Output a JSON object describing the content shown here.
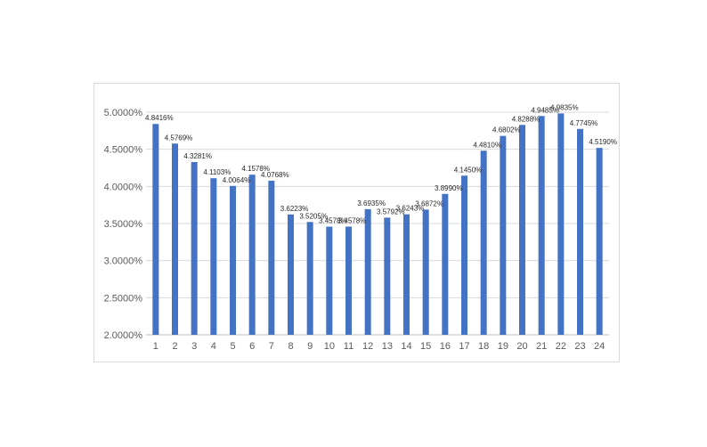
{
  "chart_data": {
    "type": "bar",
    "title": "",
    "xlabel": "",
    "ylabel": "",
    "categories": [
      "1",
      "2",
      "3",
      "4",
      "5",
      "6",
      "7",
      "8",
      "9",
      "10",
      "11",
      "12",
      "13",
      "14",
      "15",
      "16",
      "17",
      "18",
      "19",
      "20",
      "21",
      "22",
      "23",
      "24"
    ],
    "values": [
      4.8416,
      4.5769,
      4.3281,
      4.1103,
      4.0064,
      4.1578,
      4.0768,
      3.6223,
      3.5205,
      3.4578,
      3.4578,
      3.6935,
      3.5792,
      3.6243,
      3.6872,
      3.899,
      4.145,
      4.481,
      4.6802,
      4.8288,
      4.9485,
      4.9835,
      4.7745,
      4.519
    ],
    "data_labels": [
      "4.8416%",
      "4.5769%",
      "4.3281%",
      "4.1103%",
      "4.0064%",
      "4.1578%",
      "4.0768%",
      "3.6223%",
      "3.5205%",
      "3.4578%",
      "3.4578%",
      "3.6935%",
      "3.5792%",
      "3.6243%",
      "3.6872%",
      "3.8990%",
      "4.1450%",
      "4.4810%",
      "4.6802%",
      "4.8288%",
      "4.9485%",
      "4.9835%",
      "4.7745%",
      "4.5190%"
    ],
    "ylim": [
      2.0,
      5.0
    ],
    "yticks": [
      2.0,
      2.5,
      3.0,
      3.5,
      4.0,
      4.5,
      5.0
    ],
    "ytick_labels": [
      "2.0000%",
      "2.5000%",
      "3.0000%",
      "3.5000%",
      "4.0000%",
      "4.5000%",
      "5.0000%"
    ],
    "grid": true,
    "legend": "none",
    "bar_color": "#4472c4",
    "grid_color": "#d9d9d9",
    "axis_color": "#bfbfbf"
  }
}
